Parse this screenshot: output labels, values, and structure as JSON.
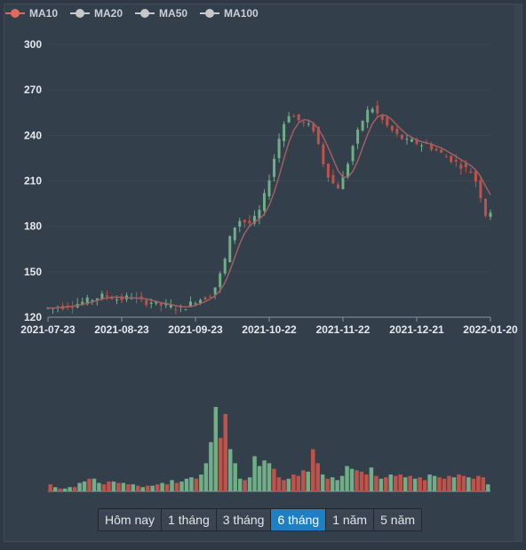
{
  "chart_data": {
    "type": "candlestick",
    "y_axis": {
      "ticks": [
        "300",
        "270",
        "240",
        "210",
        "180",
        "150",
        "120"
      ],
      "min": 120,
      "max": 300
    },
    "x_axis": {
      "ticks": [
        "2021-07-23",
        "2021-08-23",
        "2021-09-23",
        "2021-10-22",
        "2021-11-22",
        "2021-12-21",
        "2022-01-20"
      ]
    },
    "legend": [
      {
        "label": "MA10",
        "color": "#e06b5b"
      },
      {
        "label": "MA20",
        "color": "#c8c8c8"
      },
      {
        "label": "MA50",
        "color": "#c8c8c8"
      },
      {
        "label": "MA100",
        "color": "#c8c8c8"
      }
    ],
    "colors": {
      "up": "#6fae87",
      "down": "#c0524a",
      "ma": "#a06060",
      "grid": "#3d4954",
      "axis": "#8a949d",
      "label": "#e6e9ec"
    },
    "closes": [
      126,
      126,
      127,
      127,
      128,
      128,
      129,
      130,
      131,
      132,
      133,
      134,
      134,
      133,
      132,
      132,
      133,
      134,
      132,
      131,
      130,
      130,
      129,
      128,
      128,
      127,
      126,
      126,
      127,
      129,
      131,
      132,
      133,
      135,
      140,
      148,
      158,
      172,
      180,
      184,
      183,
      182,
      185,
      190,
      200,
      212,
      225,
      238,
      248,
      254,
      252,
      250,
      248,
      246,
      244,
      234,
      222,
      214,
      208,
      206,
      212,
      222,
      233,
      242,
      250,
      256,
      258,
      254,
      250,
      246,
      243,
      240,
      238,
      236,
      236,
      235,
      234,
      234,
      232,
      230,
      228,
      226,
      224,
      222,
      220,
      218,
      216,
      210,
      200,
      188,
      190
    ],
    "volumes": [
      5,
      3,
      2,
      2,
      3,
      3,
      6,
      7,
      9,
      9,
      6,
      5,
      7,
      7,
      6,
      6,
      5,
      5,
      4,
      3,
      4,
      4,
      5,
      6,
      5,
      8,
      6,
      7,
      9,
      10,
      9,
      12,
      20,
      35,
      60,
      38,
      55,
      30,
      20,
      9,
      8,
      10,
      25,
      18,
      22,
      20,
      16,
      10,
      8,
      9,
      12,
      11,
      15,
      14,
      30,
      20,
      12,
      9,
      10,
      8,
      11,
      18,
      16,
      15,
      14,
      12,
      17,
      11,
      9,
      10,
      12,
      11,
      12,
      10,
      11,
      9,
      10,
      8,
      12,
      11,
      10,
      9,
      11,
      10,
      12,
      11,
      10,
      9,
      11,
      10,
      5
    ],
    "volume_colors": [
      "d",
      "u",
      "d",
      "u",
      "u",
      "d",
      "u",
      "u",
      "d",
      "u",
      "u",
      "d",
      "d",
      "u",
      "d",
      "u",
      "d",
      "u",
      "d",
      "u",
      "d",
      "u",
      "d",
      "u",
      "d",
      "u",
      "d",
      "u",
      "u",
      "u",
      "d",
      "u",
      "u",
      "u",
      "u",
      "d",
      "d",
      "u",
      "u",
      "u",
      "d",
      "u",
      "u",
      "u",
      "u",
      "u",
      "d",
      "d",
      "d",
      "u",
      "d",
      "d",
      "d",
      "u",
      "d",
      "d",
      "u",
      "d",
      "u",
      "u",
      "u",
      "u",
      "u",
      "d",
      "d",
      "d",
      "u",
      "d",
      "u",
      "d",
      "u",
      "d",
      "d",
      "u",
      "d",
      "u",
      "d",
      "d",
      "u",
      "u",
      "d",
      "d",
      "d",
      "u",
      "d",
      "d",
      "u",
      "d",
      "d",
      "d",
      "u"
    ]
  },
  "range_buttons": [
    "Hôm nay",
    "1 tháng",
    "3 tháng",
    "6 tháng",
    "1 năm",
    "5 năm"
  ],
  "active_range": "6 tháng"
}
